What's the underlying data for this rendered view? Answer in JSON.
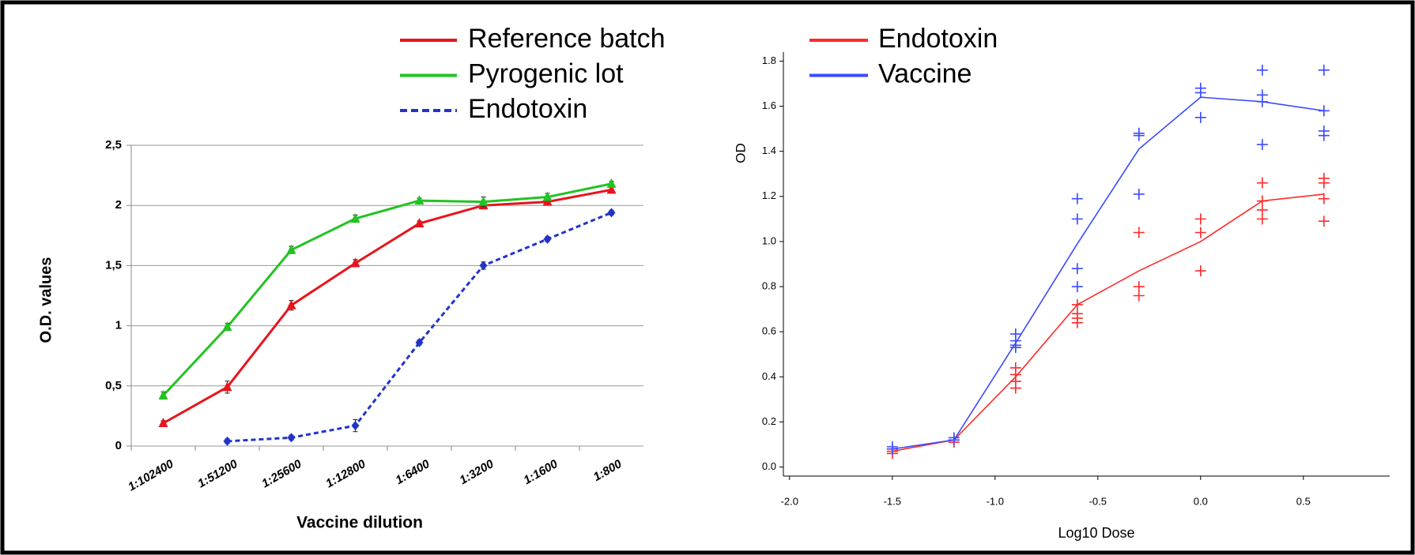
{
  "chart_data": [
    {
      "type": "line",
      "categories": [
        "1:102400",
        "1:51200",
        "1:25600",
        "1:12800",
        "1:6400",
        "1:3200",
        "1:1600",
        "1:800"
      ],
      "series": [
        {
          "name": "Reference batch",
          "color": "#e8141c",
          "marker": "triangle",
          "dash": false,
          "values": [
            0.19,
            0.49,
            1.17,
            1.52,
            1.85,
            2.0,
            2.03,
            2.13
          ],
          "errors": [
            0.02,
            0.05,
            0.04,
            0.03,
            0.02,
            0.02,
            0.02,
            0.02
          ]
        },
        {
          "name": "Pyrogenic lot",
          "color": "#22c322",
          "marker": "triangle",
          "dash": false,
          "values": [
            0.42,
            0.99,
            1.63,
            1.89,
            2.04,
            2.03,
            2.07,
            2.18
          ],
          "errors": [
            0.03,
            0.03,
            0.03,
            0.03,
            0.02,
            0.04,
            0.03,
            0.02
          ]
        },
        {
          "name": "Endotoxin",
          "color": "#2233cc",
          "marker": "diamond",
          "dash": true,
          "values": [
            null,
            0.04,
            0.07,
            0.17,
            0.86,
            1.5,
            1.72,
            1.94
          ],
          "errors": [
            null,
            0.02,
            0.02,
            0.05,
            0.02,
            0.03,
            0.02,
            0.02
          ]
        }
      ],
      "ylim": [
        0,
        2.5
      ],
      "yticks": [
        0,
        {
          "value": 0.5,
          "label": "0,5"
        },
        1,
        {
          "value": 1.5,
          "label": "1,5"
        },
        2,
        {
          "value": 2.5,
          "label": "2,5"
        }
      ],
      "grid": true,
      "ylabel": "O.D. values",
      "xlabel": "Vaccine dilution",
      "legend": "top"
    },
    {
      "type": "line",
      "series": [
        {
          "name": "Endotoxin",
          "color": "#ff2a2a",
          "x": [
            -1.5,
            -1.2,
            -0.9,
            -0.6,
            -0.3,
            0,
            0.3,
            0.6
          ],
          "values": [
            0.07,
            0.12,
            0.4,
            0.72,
            0.87,
            1.0,
            1.18,
            1.21
          ]
        },
        {
          "name": "Vaccine",
          "color": "#3a4aff",
          "x": [
            -1.5,
            -1.2,
            -0.9,
            -0.6,
            -0.3,
            0,
            0.3,
            0.6
          ],
          "values": [
            0.08,
            0.12,
            0.55,
            0.99,
            1.41,
            1.64,
            1.62,
            1.58
          ]
        }
      ],
      "replicates": [
        {
          "color": "#ff2a2a",
          "x": [
            -1.5,
            -1.5,
            -1.2,
            -1.2,
            -0.9,
            -0.9,
            -0.9,
            -0.9,
            -0.6,
            -0.6,
            -0.6,
            -0.6,
            -0.3,
            -0.3,
            -0.3,
            0,
            0,
            0,
            0.3,
            0.3,
            0.3,
            0.3,
            0.6,
            0.6,
            0.6,
            0.6
          ],
          "values": [
            0.07,
            0.06,
            0.12,
            0.11,
            0.44,
            0.41,
            0.38,
            0.35,
            0.72,
            0.68,
            0.66,
            0.64,
            1.04,
            0.8,
            0.76,
            1.1,
            1.04,
            0.87,
            1.26,
            1.18,
            1.14,
            1.1,
            1.28,
            1.26,
            1.19,
            1.09
          ]
        },
        {
          "color": "#3a4aff",
          "x": [
            -1.5,
            -1.5,
            -1.2,
            -1.2,
            -0.9,
            -0.9,
            -0.9,
            -0.9,
            -0.6,
            -0.6,
            -0.6,
            -0.6,
            -0.3,
            -0.3,
            -0.3,
            0,
            0,
            0,
            0.3,
            0.3,
            0.3,
            0.3,
            0.6,
            0.6,
            0.6,
            0.6
          ],
          "values": [
            0.08,
            0.09,
            0.12,
            0.13,
            0.59,
            0.56,
            0.54,
            0.53,
            1.19,
            1.1,
            0.88,
            0.8,
            1.48,
            1.47,
            1.21,
            1.68,
            1.66,
            1.55,
            1.76,
            1.65,
            1.62,
            1.43,
            1.76,
            1.58,
            1.49,
            1.47
          ]
        }
      ],
      "xlim": [
        -2.03,
        0.92
      ],
      "xticks": [
        {
          "value": -2.0,
          "label": "-2.0"
        },
        -1.5,
        {
          "value": -1.0,
          "label": "-1.0"
        },
        -0.5,
        {
          "value": 0,
          "label": "0.0"
        },
        0.5
      ],
      "ylim": [
        -0.04,
        1.84
      ],
      "yticks": [
        {
          "value": 0,
          "label": "0.0"
        },
        0.2,
        0.4,
        0.6,
        0.8,
        {
          "value": 1.0,
          "label": "1.0"
        },
        1.2,
        1.4,
        1.6,
        1.8
      ],
      "ylabel": "OD",
      "xlabel": "Log10 Dose",
      "legend": "top"
    }
  ]
}
